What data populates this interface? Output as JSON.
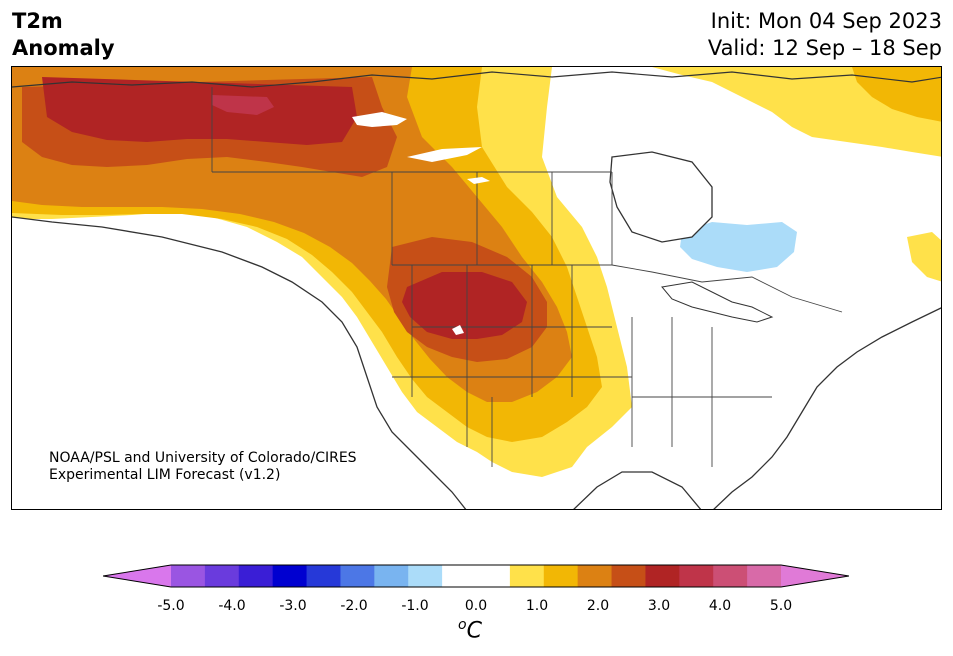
{
  "title": {
    "line1": "T2m",
    "line2": "Anomaly"
  },
  "dates": {
    "init": "Init: Mon 04 Sep 2023",
    "valid": "Valid: 12 Sep – 18 Sep"
  },
  "credit": {
    "line1": "NOAA/PSL and University of Colorado/CIRES",
    "line2": "Experimental LIM Forecast (v1.2)"
  },
  "map": {
    "region": "North America",
    "variable": "2-meter temperature anomaly",
    "features": [
      "coastlines",
      "country borders",
      "US state borders",
      "Canadian province borders",
      "Great Lakes"
    ],
    "anomaly_regions": [
      {
        "area": "Alaska / Yukon",
        "level": "warm",
        "peak_anomaly_c": 3.5
      },
      {
        "area": "Northern Rockies / Great Basin",
        "level": "warm",
        "peak_anomaly_c": 3.0
      },
      {
        "area": "Great Lakes / Hudson Bay vicinity",
        "level": "cool",
        "peak_anomaly_c": -1.0
      },
      {
        "area": "Eastern US",
        "level": "neutral",
        "peak_anomaly_c": 0.0
      },
      {
        "area": "Labrador / Baffin",
        "level": "warm",
        "peak_anomaly_c": 1.0
      }
    ]
  },
  "colorbar": {
    "unit_base": "C",
    "unit_super": "o",
    "ticks": [
      "-5.0",
      "-4.0",
      "-3.0",
      "-2.0",
      "-1.0",
      "0.0",
      "1.0",
      "2.0",
      "3.0",
      "4.0",
      "5.0"
    ],
    "colors": [
      "#d977ec",
      "#9a55e2",
      "#6a3bdd",
      "#3a1ed6",
      "#0000d0",
      "#2639d8",
      "#4c77e6",
      "#79b4f0",
      "#abdcf9",
      "#ffffff",
      "#ffffff",
      "#ffe14a",
      "#f2b705",
      "#dc8113",
      "#c64f17",
      "#b02424",
      "#bf3449",
      "#cc4f75",
      "#d86aa8",
      "#e07ad7"
    ]
  }
}
